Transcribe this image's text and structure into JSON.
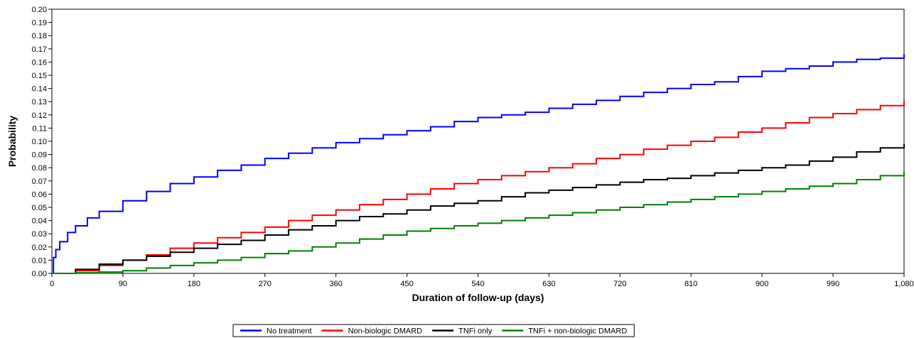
{
  "chart_data": {
    "type": "line",
    "title": "",
    "xlabel": "Duration of follow-up (days)",
    "ylabel": "Probability",
    "xlim": [
      0,
      1080
    ],
    "ylim": [
      0,
      0.2
    ],
    "x_ticks": [
      0,
      90,
      180,
      270,
      360,
      450,
      540,
      630,
      720,
      810,
      900,
      990,
      1080
    ],
    "x_tick_labels": [
      "0",
      "90",
      "180",
      "270",
      "360",
      "450",
      "540",
      "630",
      "720",
      "810",
      "900",
      "990",
      "1,080"
    ],
    "y_ticks": [
      0,
      0.01,
      0.02,
      0.03,
      0.04,
      0.05,
      0.06,
      0.07,
      0.08,
      0.09,
      0.1,
      0.11,
      0.12,
      0.13,
      0.14,
      0.15,
      0.16,
      0.17,
      0.18,
      0.19,
      0.2
    ],
    "y_tick_labels": [
      "0.00",
      "0.01",
      "0.02",
      "0.03",
      "0.04",
      "0.05",
      "0.06",
      "0.07",
      "0.08",
      "0.09",
      "0.10",
      "0.11",
      "0.12",
      "0.13",
      "0.14",
      "0.15",
      "0.16",
      "0.17",
      "0.18",
      "0.19",
      "0.20"
    ],
    "grid": false,
    "legend_position": "bottom-center",
    "series": [
      {
        "name": "No treatment",
        "color": "#0000ff",
        "x": [
          0,
          2,
          5,
          10,
          20,
          30,
          45,
          60,
          90,
          120,
          150,
          180,
          210,
          240,
          270,
          300,
          330,
          360,
          390,
          420,
          450,
          480,
          510,
          540,
          570,
          600,
          630,
          660,
          690,
          720,
          750,
          780,
          810,
          840,
          870,
          900,
          930,
          960,
          990,
          1020,
          1050,
          1080
        ],
        "y": [
          0,
          0.012,
          0.018,
          0.024,
          0.031,
          0.036,
          0.042,
          0.047,
          0.055,
          0.062,
          0.068,
          0.073,
          0.078,
          0.082,
          0.087,
          0.091,
          0.095,
          0.099,
          0.102,
          0.105,
          0.108,
          0.111,
          0.115,
          0.118,
          0.12,
          0.122,
          0.125,
          0.128,
          0.131,
          0.134,
          0.137,
          0.14,
          0.143,
          0.145,
          0.149,
          0.153,
          0.155,
          0.157,
          0.16,
          0.162,
          0.163,
          0.166
        ]
      },
      {
        "name": "Non-biologic DMARD",
        "color": "#ff0000",
        "x": [
          0,
          30,
          60,
          90,
          120,
          150,
          180,
          210,
          240,
          270,
          300,
          330,
          360,
          390,
          420,
          450,
          480,
          510,
          540,
          570,
          600,
          630,
          660,
          690,
          720,
          750,
          780,
          810,
          840,
          870,
          900,
          930,
          960,
          990,
          1020,
          1050,
          1080
        ],
        "y": [
          0,
          0.002,
          0.006,
          0.01,
          0.014,
          0.019,
          0.023,
          0.027,
          0.031,
          0.035,
          0.04,
          0.044,
          0.048,
          0.052,
          0.056,
          0.06,
          0.064,
          0.068,
          0.071,
          0.074,
          0.077,
          0.08,
          0.083,
          0.087,
          0.09,
          0.094,
          0.097,
          0.1,
          0.103,
          0.107,
          0.11,
          0.114,
          0.118,
          0.121,
          0.124,
          0.127,
          0.131
        ]
      },
      {
        "name": "TNFi only",
        "color": "#000000",
        "x": [
          0,
          30,
          60,
          90,
          120,
          150,
          180,
          210,
          240,
          270,
          300,
          330,
          360,
          390,
          420,
          450,
          480,
          510,
          540,
          570,
          600,
          630,
          660,
          690,
          720,
          750,
          780,
          810,
          840,
          870,
          900,
          930,
          960,
          990,
          1020,
          1050,
          1080
        ],
        "y": [
          0,
          0.003,
          0.007,
          0.01,
          0.013,
          0.016,
          0.019,
          0.022,
          0.025,
          0.029,
          0.033,
          0.036,
          0.04,
          0.043,
          0.045,
          0.048,
          0.051,
          0.053,
          0.055,
          0.058,
          0.061,
          0.063,
          0.065,
          0.067,
          0.069,
          0.071,
          0.072,
          0.074,
          0.076,
          0.078,
          0.08,
          0.082,
          0.085,
          0.088,
          0.092,
          0.095,
          0.098
        ]
      },
      {
        "name": "TNFi + non-biologic DMARD",
        "color": "#008000",
        "x": [
          0,
          30,
          60,
          90,
          120,
          150,
          180,
          210,
          240,
          270,
          300,
          330,
          360,
          390,
          420,
          450,
          480,
          510,
          540,
          570,
          600,
          630,
          660,
          690,
          720,
          750,
          780,
          810,
          840,
          870,
          900,
          930,
          960,
          990,
          1020,
          1050,
          1080
        ],
        "y": [
          0,
          0.0005,
          0.001,
          0.002,
          0.004,
          0.006,
          0.008,
          0.01,
          0.012,
          0.015,
          0.017,
          0.02,
          0.023,
          0.026,
          0.029,
          0.032,
          0.034,
          0.036,
          0.038,
          0.04,
          0.042,
          0.044,
          0.046,
          0.048,
          0.05,
          0.052,
          0.054,
          0.056,
          0.058,
          0.06,
          0.062,
          0.064,
          0.066,
          0.068,
          0.071,
          0.074,
          0.077
        ]
      }
    ]
  }
}
